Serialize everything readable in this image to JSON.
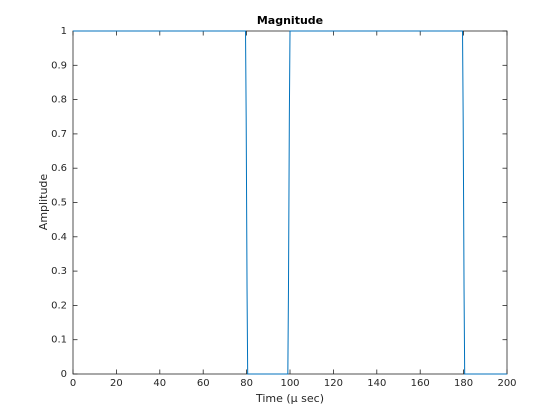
{
  "chart_data": {
    "type": "line",
    "title": "Magnitude",
    "x_label": "Time (μ sec)",
    "y_label": "Amplitude",
    "x": [
      0,
      79.5,
      79.8,
      80.2,
      80.5,
      99,
      99.3,
      99.7,
      100,
      179.5,
      179.8,
      180.2,
      180.5,
      200
    ],
    "series": [
      {
        "color": "#0072bd",
        "values": [
          1,
          1,
          0.75,
          0.25,
          0,
          0,
          0.25,
          0.75,
          1,
          1,
          0.75,
          0.25,
          0,
          0
        ]
      }
    ],
    "xlim": [
      0,
      200
    ],
    "ylim": [
      0,
      1
    ],
    "xticks": [
      0,
      20,
      40,
      60,
      80,
      100,
      120,
      140,
      160,
      180,
      200
    ],
    "yticks": [
      0,
      0.1,
      0.2,
      0.3,
      0.4,
      0.5,
      0.6,
      0.7,
      0.8,
      0.9,
      1
    ]
  }
}
